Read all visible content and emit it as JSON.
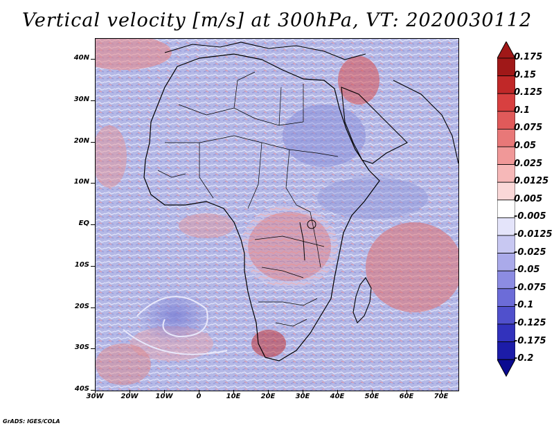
{
  "title": "Vertical velocity [m/s] at 300hPa, VT: 2020030112",
  "footer": "GrADS: IGES/COLA",
  "lat_labels": [
    "40N",
    "30N",
    "20N",
    "10N",
    "EQ",
    "10S",
    "20S",
    "30S",
    "40S"
  ],
  "lon_labels": [
    "30W",
    "20W",
    "10W",
    "0",
    "10E",
    "20E",
    "30E",
    "40E",
    "50E",
    "60E",
    "70E"
  ],
  "colorbar": {
    "levels": [
      "0.175",
      "0.15",
      "0.125",
      "0.1",
      "0.075",
      "0.05",
      "0.025",
      "0.0125",
      "0.005",
      "-0.005",
      "-0.0125",
      "-0.025",
      "-0.05",
      "-0.075",
      "-0.1",
      "-0.125",
      "-0.175",
      "-0.2"
    ],
    "colors": [
      "#a01818",
      "#c02828",
      "#d84040",
      "#e05a5a",
      "#e87878",
      "#f09898",
      "#f6b8b8",
      "#fad8d8",
      "#ffffff",
      "#e4e4fa",
      "#c8c8f2",
      "#aaaaea",
      "#8c8ce2",
      "#6c6cd8",
      "#5050cc",
      "#3232bc",
      "#1c1ca8",
      "#0a0a90"
    ]
  },
  "colors": {
    "land_outline": "#000000",
    "background": "#b8bce8"
  }
}
